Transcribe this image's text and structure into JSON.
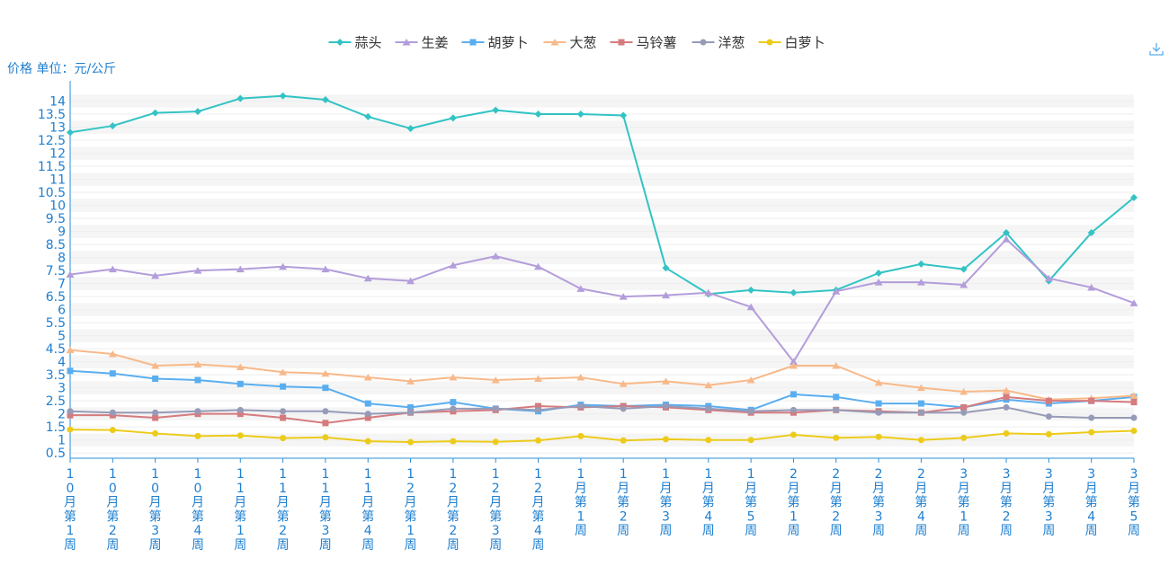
{
  "unit_label": "价格 单位：元/公斤",
  "chart_data": {
    "type": "line",
    "categories": [
      "10月第1周",
      "10月第2周",
      "10月第3周",
      "10月第4周",
      "11月第1周",
      "11月第2周",
      "11月第3周",
      "11月第4周",
      "12月第1周",
      "12月第2周",
      "12月第3周",
      "12月第4周",
      "1月第1周",
      "1月第2周",
      "1月第3周",
      "1月第4周",
      "1月第5周",
      "2月第1周",
      "2月第2周",
      "2月第3周",
      "2月第4周",
      "3月第1周",
      "3月第2周",
      "3月第3周",
      "3月第4周",
      "3月第5周"
    ],
    "ylim": [
      0.5,
      14
    ],
    "yticks": [
      "0.5",
      "1",
      "1.5",
      "2",
      "2.5",
      "3",
      "3.5",
      "4",
      "4.5",
      "5",
      "5.5",
      "6",
      "6.5",
      "7",
      "7.5",
      "8",
      "8.5",
      "9",
      "9.5",
      "10",
      "10.5",
      "11",
      "11.5",
      "12",
      "12.5",
      "13",
      "13.5",
      "14"
    ],
    "legend_position": "top-center",
    "series": [
      {
        "name": "蒜头",
        "color": "#33c3c4",
        "marker": "diamond",
        "values": [
          12.8,
          13.05,
          13.55,
          13.6,
          14.1,
          14.2,
          14.05,
          13.4,
          12.95,
          13.35,
          13.65,
          13.5,
          13.5,
          13.45,
          7.6,
          6.6,
          6.75,
          6.65,
          6.75,
          7.4,
          7.75,
          7.55,
          8.95,
          7.1,
          8.95,
          10.3
        ]
      },
      {
        "name": "生姜",
        "color": "#b39ddb",
        "marker": "triangle",
        "values": [
          7.35,
          7.55,
          7.3,
          7.5,
          7.55,
          7.65,
          7.55,
          7.2,
          7.1,
          7.7,
          8.05,
          7.65,
          6.8,
          6.5,
          6.55,
          6.65,
          6.1,
          4.0,
          6.7,
          7.05,
          7.05,
          6.95,
          8.7,
          7.2,
          6.85,
          6.25
        ]
      },
      {
        "name": "胡萝卜",
        "color": "#5aaef0",
        "marker": "square",
        "values": [
          3.65,
          3.55,
          3.35,
          3.3,
          3.15,
          3.05,
          3.0,
          2.4,
          2.25,
          2.45,
          2.2,
          2.1,
          2.35,
          2.3,
          2.35,
          2.3,
          2.15,
          2.75,
          2.65,
          2.4,
          2.4,
          2.25,
          2.55,
          2.4,
          2.5,
          2.65
        ]
      },
      {
        "name": "大葱",
        "color": "#f8b98a",
        "marker": "triangle",
        "values": [
          4.45,
          4.3,
          3.85,
          3.9,
          3.8,
          3.6,
          3.55,
          3.4,
          3.25,
          3.4,
          3.3,
          3.35,
          3.4,
          3.15,
          3.25,
          3.1,
          3.3,
          3.85,
          3.85,
          3.2,
          3.0,
          2.85,
          2.9,
          2.55,
          2.6,
          2.7
        ]
      },
      {
        "name": "马铃薯",
        "color": "#d57b7e",
        "marker": "square",
        "values": [
          1.95,
          1.95,
          1.85,
          2.0,
          2.0,
          1.85,
          1.65,
          1.85,
          2.05,
          2.1,
          2.15,
          2.3,
          2.25,
          2.3,
          2.25,
          2.15,
          2.05,
          2.05,
          2.15,
          2.1,
          2.05,
          2.25,
          2.65,
          2.5,
          2.5,
          2.45
        ]
      },
      {
        "name": "洋葱",
        "color": "#969bb8",
        "marker": "circle",
        "values": [
          2.1,
          2.05,
          2.05,
          2.1,
          2.15,
          2.1,
          2.1,
          2.0,
          2.05,
          2.2,
          2.2,
          2.15,
          2.3,
          2.2,
          2.3,
          2.2,
          2.1,
          2.15,
          2.15,
          2.05,
          2.05,
          2.05,
          2.25,
          1.9,
          1.85,
          1.85
        ]
      },
      {
        "name": "白萝卜",
        "color": "#eccb1a",
        "marker": "circle",
        "values": [
          1.4,
          1.38,
          1.25,
          1.15,
          1.17,
          1.07,
          1.1,
          0.95,
          0.92,
          0.95,
          0.93,
          0.98,
          1.15,
          0.98,
          1.03,
          1.0,
          1.0,
          1.2,
          1.08,
          1.12,
          1.0,
          1.08,
          1.25,
          1.22,
          1.3,
          1.35
        ]
      }
    ]
  }
}
